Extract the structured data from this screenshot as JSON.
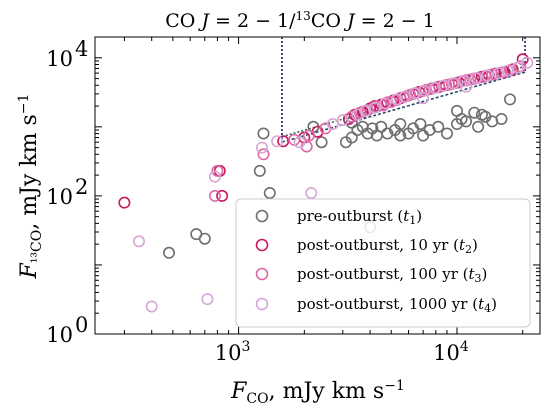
{
  "chart_data": {
    "type": "scatter",
    "title": "CO J = 2 − 1/¹³CO J = 2 − 1",
    "xlabel": "F_CO, mJy km s⁻¹",
    "ylabel": "F_13CO, mJy km s⁻¹",
    "xscale": "log",
    "yscale": "log",
    "xlim": [
      220,
      24000
    ],
    "ylim": [
      1,
      20000
    ],
    "xticks": [
      {
        "value": 1000,
        "label": "10",
        "exp": "3"
      },
      {
        "value": 10000,
        "label": "10",
        "exp": "4"
      }
    ],
    "yticks": [
      {
        "value": 1,
        "label": "10",
        "exp": "0"
      },
      {
        "value": 100,
        "label": "10",
        "exp": "2"
      },
      {
        "value": 10000,
        "label": "10",
        "exp": "4"
      }
    ],
    "grid": false,
    "legend_position": "lower-right",
    "series": [
      {
        "name": "pre-outburst (t₁)",
        "color": "#6e6e6e",
        "points": [
          [
            480,
            15
          ],
          [
            640,
            28
          ],
          [
            700,
            24
          ],
          [
            1250,
            230
          ],
          [
            1300,
            800
          ],
          [
            1390,
            110
          ],
          [
            2200,
            1000
          ],
          [
            2400,
            600
          ],
          [
            3100,
            600
          ],
          [
            3300,
            1150
          ],
          [
            3500,
            900
          ],
          [
            3700,
            1000
          ],
          [
            3900,
            800
          ],
          [
            4100,
            950
          ],
          [
            4300,
            750
          ],
          [
            4500,
            1000
          ],
          [
            4800,
            800
          ],
          [
            5200,
            900
          ],
          [
            5500,
            1100
          ],
          [
            6000,
            800
          ],
          [
            6300,
            950
          ],
          [
            6800,
            1100
          ],
          [
            7000,
            750
          ],
          [
            7500,
            900
          ],
          [
            8200,
            1000
          ],
          [
            9000,
            800
          ],
          [
            10000,
            1100
          ],
          [
            10500,
            1300
          ],
          [
            11000,
            1200
          ],
          [
            12000,
            1600
          ],
          [
            12500,
            1000
          ],
          [
            13500,
            1400
          ],
          [
            14500,
            1200
          ],
          [
            16000,
            1300
          ],
          [
            17500,
            2500
          ],
          [
            10000,
            1700
          ],
          [
            13000,
            1500
          ],
          [
            4000,
            35
          ],
          [
            3300,
            700
          ],
          [
            5500,
            750
          ]
        ]
      },
      {
        "name": "post-outburst, 10 yr (t₂)",
        "color": "#c8185f",
        "points": [
          [
            300,
            80
          ],
          [
            820,
            230
          ],
          [
            840,
            100
          ],
          [
            1600,
            620
          ],
          [
            2000,
            700
          ],
          [
            2300,
            850
          ],
          [
            3200,
            1300
          ],
          [
            3400,
            1500
          ],
          [
            3700,
            1650
          ],
          [
            4000,
            1850
          ],
          [
            4200,
            2000
          ],
          [
            4500,
            2100
          ],
          [
            4800,
            2250
          ],
          [
            5100,
            2400
          ],
          [
            5500,
            2600
          ],
          [
            5900,
            2800
          ],
          [
            6300,
            3000
          ],
          [
            6700,
            3200
          ],
          [
            7200,
            3400
          ],
          [
            7700,
            3600
          ],
          [
            8300,
            3800
          ],
          [
            8900,
            4000
          ],
          [
            9500,
            4200
          ],
          [
            10200,
            4400
          ],
          [
            11000,
            4700
          ],
          [
            12000,
            5000
          ],
          [
            13000,
            5300
          ],
          [
            14000,
            5600
          ],
          [
            15000,
            5900
          ],
          [
            16500,
            6200
          ],
          [
            18000,
            6800
          ],
          [
            20000,
            9500
          ]
        ]
      },
      {
        "name": "post-outburst, 100 yr (t₃)",
        "color": "#e068a8",
        "points": [
          [
            780,
            100
          ],
          [
            800,
            230
          ],
          [
            1300,
            400
          ],
          [
            1800,
            650
          ],
          [
            2100,
            750
          ],
          [
            2500,
            950
          ],
          [
            3300,
            1400
          ],
          [
            3600,
            1600
          ],
          [
            3900,
            1750
          ],
          [
            4300,
            1950
          ],
          [
            4600,
            2050
          ],
          [
            5000,
            2300
          ],
          [
            5300,
            2450
          ],
          [
            5700,
            2700
          ],
          [
            6100,
            2900
          ],
          [
            6500,
            3100
          ],
          [
            7000,
            3300
          ],
          [
            7500,
            3500
          ],
          [
            8000,
            3700
          ],
          [
            8600,
            3900
          ],
          [
            9200,
            4100
          ],
          [
            9800,
            4300
          ],
          [
            10600,
            4600
          ],
          [
            11500,
            4850
          ],
          [
            12500,
            5150
          ],
          [
            13500,
            5450
          ],
          [
            14500,
            5750
          ],
          [
            16000,
            6100
          ],
          [
            17500,
            6600
          ],
          [
            19500,
            7500
          ],
          [
            2050,
            520
          ]
        ]
      },
      {
        "name": "post-outburst, 1000 yr (t₄)",
        "color": "#d6a6d6",
        "points": [
          [
            350,
            22
          ],
          [
            400,
            2.5
          ],
          [
            720,
            3.2
          ],
          [
            780,
            190
          ],
          [
            1280,
            500
          ],
          [
            1500,
            620
          ],
          [
            1900,
            600
          ],
          [
            2150,
            110
          ],
          [
            2700,
            1100
          ],
          [
            3000,
            1250
          ],
          [
            3500,
            1500
          ],
          [
            3800,
            1700
          ],
          [
            4200,
            1900
          ],
          [
            4700,
            2200
          ],
          [
            5300,
            2500
          ],
          [
            5800,
            2750
          ],
          [
            6400,
            3050
          ],
          [
            7100,
            3350
          ],
          [
            7900,
            3650
          ],
          [
            8700,
            3950
          ],
          [
            9600,
            4250
          ],
          [
            10800,
            4650
          ],
          [
            12200,
            5050
          ],
          [
            13800,
            5550
          ],
          [
            15500,
            6000
          ],
          [
            17000,
            6500
          ],
          [
            19000,
            7200
          ],
          [
            21000,
            8500
          ],
          [
            7000,
            2600
          ],
          [
            11000,
            3800
          ]
        ]
      }
    ],
    "reference_lines": {
      "cutoff_x_low": 1580,
      "cutoff_x_high": 20500,
      "fit_line": [
        [
          1580,
          600
        ],
        [
          20500,
          6200
        ]
      ],
      "upper_line": [
        [
          1580,
          720
        ],
        [
          20500,
          7500
        ]
      ]
    }
  }
}
